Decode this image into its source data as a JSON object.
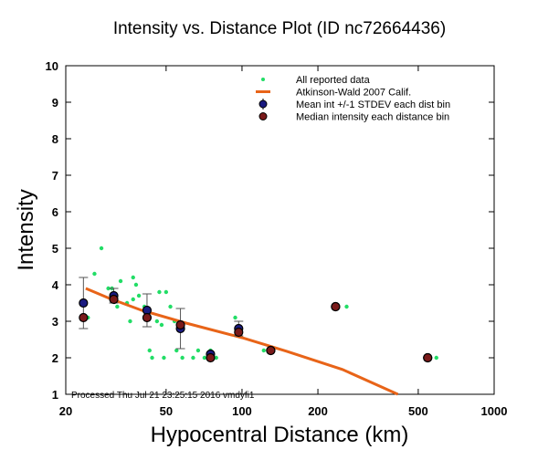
{
  "chart_data": {
    "type": "scatter",
    "title": "Intensity vs. Distance Plot (ID nc72664436)",
    "xlabel": "Hypocentral Distance (km)",
    "ylabel": "Intensity",
    "xscale": "log",
    "xlim": [
      20,
      1000
    ],
    "ylim": [
      1,
      10
    ],
    "xticks": [
      20,
      50,
      100,
      200,
      500,
      1000
    ],
    "xtick_labels": [
      "20",
      "50",
      "100",
      "200",
      "500",
      "1000"
    ],
    "yticks": [
      1,
      2,
      3,
      4,
      5,
      6,
      7,
      8,
      9,
      10
    ],
    "ytick_labels": [
      "1",
      "2",
      "3",
      "4",
      "5",
      "6",
      "7",
      "8",
      "9",
      "10"
    ],
    "grid": false,
    "legend_position": "top-right",
    "legend": [
      {
        "label": "All reported data",
        "marker": "green-dot"
      },
      {
        "label": "Atkinson-Wald 2007 Calif.",
        "marker": "orange-line"
      },
      {
        "label": "Mean int +/-1 STDEV each dist bin",
        "marker": "blue-circle-errorbar"
      },
      {
        "label": "Median intensity each distance bin",
        "marker": "red-circle"
      }
    ],
    "annotation": "Processed Thu Jul 21 23:25:15 2016 vmdyfi1",
    "colors": {
      "reported": "#22dd66",
      "model": "#e86418",
      "mean": "#1a1a80",
      "median": "#7a1a1a",
      "errorbar": "#555555"
    },
    "series": [
      {
        "name": "All reported data",
        "points": [
          [
            23.5,
            3.1
          ],
          [
            24.5,
            3.1
          ],
          [
            26,
            4.3
          ],
          [
            27.7,
            5.0
          ],
          [
            29.5,
            3.9
          ],
          [
            30.5,
            3.9
          ],
          [
            31,
            3.6
          ],
          [
            32,
            3.4
          ],
          [
            33,
            4.1
          ],
          [
            35,
            3.5
          ],
          [
            36,
            3.0
          ],
          [
            37,
            3.6
          ],
          [
            37,
            4.2
          ],
          [
            38,
            4.0
          ],
          [
            39,
            3.7
          ],
          [
            41,
            3.4
          ],
          [
            42,
            3.2
          ],
          [
            43,
            2.2
          ],
          [
            44,
            2.0
          ],
          [
            46,
            3.0
          ],
          [
            47,
            3.8
          ],
          [
            48,
            2.9
          ],
          [
            49,
            2.0
          ],
          [
            50,
            3.8
          ],
          [
            52,
            3.4
          ],
          [
            54,
            3.0
          ],
          [
            55,
            2.2
          ],
          [
            58,
            2.0
          ],
          [
            64,
            2.0
          ],
          [
            67,
            2.2
          ],
          [
            71,
            2.0
          ],
          [
            75,
            2.2
          ],
          [
            79,
            2.0
          ],
          [
            94,
            3.1
          ],
          [
            96,
            2.8
          ],
          [
            122,
            2.2
          ],
          [
            260,
            3.4
          ],
          [
            590,
            2.0
          ]
        ]
      },
      {
        "name": "Atkinson-Wald 2007 Calif.",
        "line": [
          [
            24,
            3.9
          ],
          [
            30,
            3.62
          ],
          [
            40,
            3.3
          ],
          [
            60,
            2.95
          ],
          [
            100,
            2.55
          ],
          [
            150,
            2.18
          ],
          [
            250,
            1.68
          ],
          [
            415,
            1.0
          ]
        ]
      },
      {
        "name": "Mean int +/-1 STDEV each dist bin",
        "points": [
          {
            "x": 23.5,
            "y": 3.5,
            "err": 0.7
          },
          {
            "x": 31,
            "y": 3.7,
            "err": 0.2
          },
          {
            "x": 42,
            "y": 3.3,
            "err": 0.45
          },
          {
            "x": 57,
            "y": 2.8,
            "err": 0.55
          },
          {
            "x": 75,
            "y": 2.1,
            "err": 0.0
          },
          {
            "x": 97,
            "y": 2.8,
            "err": 0.2
          },
          {
            "x": 130,
            "y": 2.2,
            "err": 0.0
          },
          {
            "x": 235,
            "y": 3.4,
            "err": 0.0
          },
          {
            "x": 545,
            "y": 2.0,
            "err": 0.0
          }
        ]
      },
      {
        "name": "Median intensity each distance bin",
        "points": [
          [
            23.5,
            3.1
          ],
          [
            31,
            3.6
          ],
          [
            42,
            3.1
          ],
          [
            57,
            2.9
          ],
          [
            75,
            2.0
          ],
          [
            97,
            2.7
          ],
          [
            130,
            2.2
          ],
          [
            235,
            3.4
          ],
          [
            545,
            2.0
          ]
        ]
      }
    ]
  }
}
